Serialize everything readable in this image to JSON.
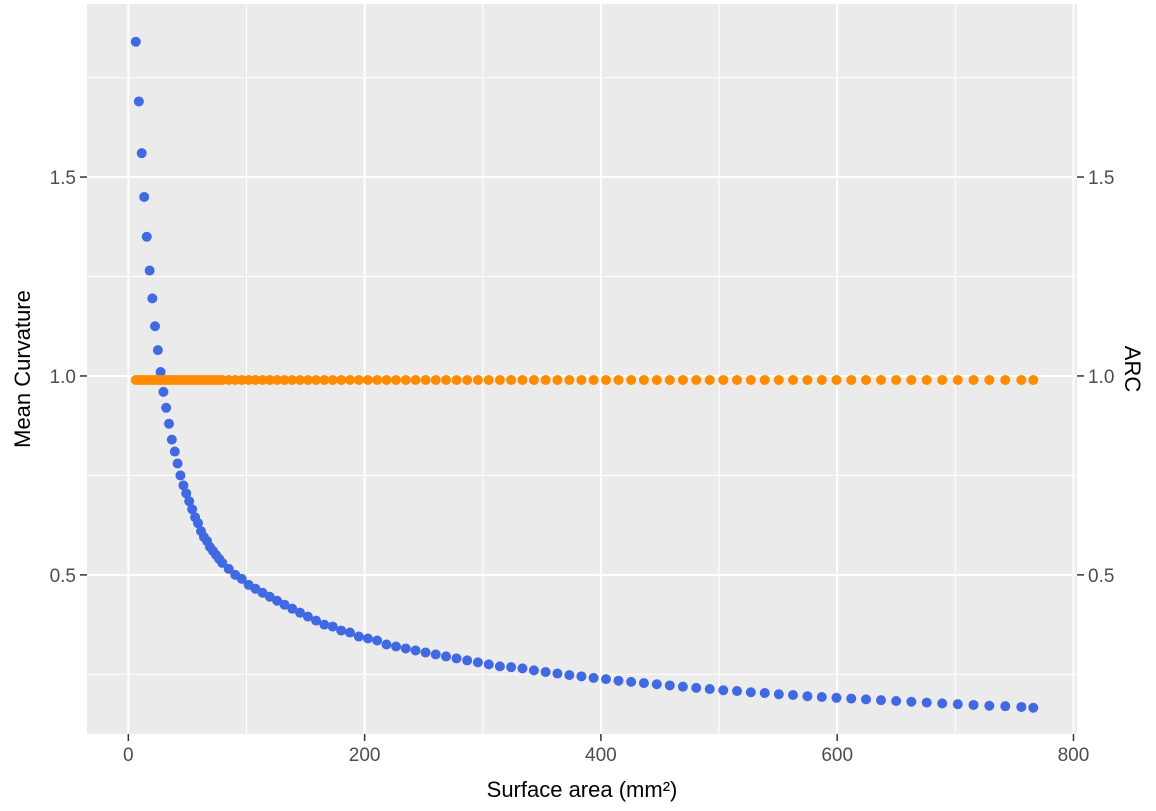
{
  "chart_data": {
    "type": "scatter",
    "title": "",
    "xlabel": "Surface area (mm²)",
    "ylabel": "Mean Curvature",
    "y2label": "ARC",
    "xlim": [
      -35,
      803
    ],
    "ylim": [
      0.1,
      1.935
    ],
    "y2lim": [
      0.1,
      1.935
    ],
    "xticks": [
      0,
      200,
      400,
      600,
      800
    ],
    "xtick_labels": [
      "0",
      "200",
      "400",
      "600",
      "800"
    ],
    "yticks": [
      0.5,
      1.0,
      1.5
    ],
    "ytick_labels": [
      "0.5",
      "1.0",
      "1.5"
    ],
    "y2ticks": [
      0.5,
      1.0,
      1.5
    ],
    "y2tick_labels": [
      "0.5",
      "1.0",
      "1.5"
    ],
    "grid": true,
    "legend": "none",
    "colors": {
      "panel": "#ebebeb",
      "grid": "#ffffff",
      "mean_curvature": "#4169e1",
      "arc": "#ff8c00",
      "tick_label": "#4d4d4d",
      "axis_title": "#000000"
    },
    "series": [
      {
        "key": "mean_curvature",
        "color": "#4169e1",
        "points": [
          [
            6.3,
            1.84
          ],
          [
            8.9,
            1.69
          ],
          [
            11.3,
            1.56
          ],
          [
            13.4,
            1.45
          ],
          [
            15.6,
            1.35
          ],
          [
            18.0,
            1.265
          ],
          [
            20.3,
            1.195
          ],
          [
            22.6,
            1.125
          ],
          [
            25.0,
            1.065
          ],
          [
            27.3,
            1.01
          ],
          [
            29.7,
            0.96
          ],
          [
            32.0,
            0.92
          ],
          [
            34.4,
            0.88
          ],
          [
            36.8,
            0.84
          ],
          [
            39.3,
            0.81
          ],
          [
            41.7,
            0.78
          ],
          [
            44.1,
            0.75
          ],
          [
            46.6,
            0.725
          ],
          [
            49.0,
            0.705
          ],
          [
            51.5,
            0.685
          ],
          [
            54.0,
            0.665
          ],
          [
            56.5,
            0.645
          ],
          [
            59.0,
            0.63
          ],
          [
            61.5,
            0.61
          ],
          [
            64.0,
            0.595
          ],
          [
            66.6,
            0.585
          ],
          [
            69.1,
            0.57
          ],
          [
            71.7,
            0.56
          ],
          [
            74.3,
            0.55
          ],
          [
            76.9,
            0.54
          ],
          [
            79.5,
            0.53
          ],
          [
            85.0,
            0.515
          ],
          [
            90.5,
            0.5
          ],
          [
            96.0,
            0.49
          ],
          [
            101.8,
            0.475
          ],
          [
            107.6,
            0.465
          ],
          [
            113.6,
            0.455
          ],
          [
            119.7,
            0.445
          ],
          [
            125.9,
            0.435
          ],
          [
            132.2,
            0.425
          ],
          [
            138.7,
            0.415
          ],
          [
            145.3,
            0.405
          ],
          [
            152.0,
            0.395
          ],
          [
            158.9,
            0.385
          ],
          [
            165.9,
            0.375
          ],
          [
            173.0,
            0.37
          ],
          [
            180.2,
            0.36
          ],
          [
            187.6,
            0.355
          ],
          [
            195.1,
            0.345
          ],
          [
            202.8,
            0.34
          ],
          [
            210.6,
            0.335
          ],
          [
            218.5,
            0.325
          ],
          [
            226.6,
            0.32
          ],
          [
            234.8,
            0.315
          ],
          [
            243.1,
            0.31
          ],
          [
            251.6,
            0.305
          ],
          [
            260.2,
            0.3
          ],
          [
            268.9,
            0.295
          ],
          [
            277.8,
            0.29
          ],
          [
            286.8,
            0.285
          ],
          [
            295.9,
            0.28
          ],
          [
            305.1,
            0.275
          ],
          [
            314.5,
            0.27
          ],
          [
            324.0,
            0.268
          ],
          [
            333.6,
            0.265
          ],
          [
            343.3,
            0.26
          ],
          [
            353.2,
            0.256
          ],
          [
            363.2,
            0.252
          ],
          [
            373.3,
            0.248
          ],
          [
            383.5,
            0.245
          ],
          [
            393.8,
            0.241
          ],
          [
            404.3,
            0.238
          ],
          [
            414.9,
            0.234
          ],
          [
            425.6,
            0.231
          ],
          [
            436.4,
            0.228
          ],
          [
            447.3,
            0.225
          ],
          [
            458.3,
            0.222
          ],
          [
            469.4,
            0.219
          ],
          [
            480.7,
            0.216
          ],
          [
            492.1,
            0.213
          ],
          [
            503.6,
            0.21
          ],
          [
            515.2,
            0.208
          ],
          [
            526.9,
            0.205
          ],
          [
            538.7,
            0.203
          ],
          [
            550.6,
            0.2
          ],
          [
            562.6,
            0.198
          ],
          [
            574.8,
            0.195
          ],
          [
            587.0,
            0.193
          ],
          [
            599.4,
            0.191
          ],
          [
            611.9,
            0.189
          ],
          [
            624.4,
            0.187
          ],
          [
            637.1,
            0.185
          ],
          [
            649.9,
            0.183
          ],
          [
            662.8,
            0.181
          ],
          [
            675.8,
            0.179
          ],
          [
            688.9,
            0.177
          ],
          [
            702.1,
            0.175
          ],
          [
            715.4,
            0.173
          ],
          [
            728.8,
            0.171
          ],
          [
            742.3,
            0.17
          ],
          [
            755.9,
            0.168
          ],
          [
            766.0,
            0.166
          ]
        ]
      },
      {
        "key": "arc",
        "color": "#ff8c00",
        "y": 0.99,
        "x": [
          6.3,
          8.9,
          11.3,
          13.4,
          15.6,
          18.0,
          20.3,
          22.6,
          25.0,
          27.3,
          29.7,
          32.0,
          34.4,
          36.8,
          39.3,
          41.7,
          44.1,
          46.6,
          49.0,
          51.5,
          54.0,
          56.5,
          59.0,
          61.5,
          64.0,
          66.6,
          69.1,
          71.7,
          74.3,
          76.9,
          79.5,
          85.0,
          90.5,
          96.0,
          101.8,
          107.6,
          113.6,
          119.7,
          125.9,
          132.2,
          138.7,
          145.3,
          152.0,
          158.9,
          165.9,
          173.0,
          180.2,
          187.6,
          195.1,
          202.8,
          210.6,
          218.5,
          226.6,
          234.8,
          243.1,
          251.6,
          260.2,
          268.9,
          277.8,
          286.8,
          295.9,
          305.1,
          314.5,
          324.0,
          333.6,
          343.3,
          353.2,
          363.2,
          373.3,
          383.5,
          393.8,
          404.3,
          414.9,
          425.6,
          436.4,
          447.3,
          458.3,
          469.4,
          480.7,
          492.1,
          503.6,
          515.2,
          526.9,
          538.7,
          550.6,
          562.6,
          574.8,
          587.0,
          599.4,
          611.9,
          624.4,
          637.1,
          649.9,
          662.8,
          675.8,
          688.9,
          702.1,
          715.4,
          728.8,
          742.3,
          755.9,
          766.0
        ]
      }
    ]
  }
}
